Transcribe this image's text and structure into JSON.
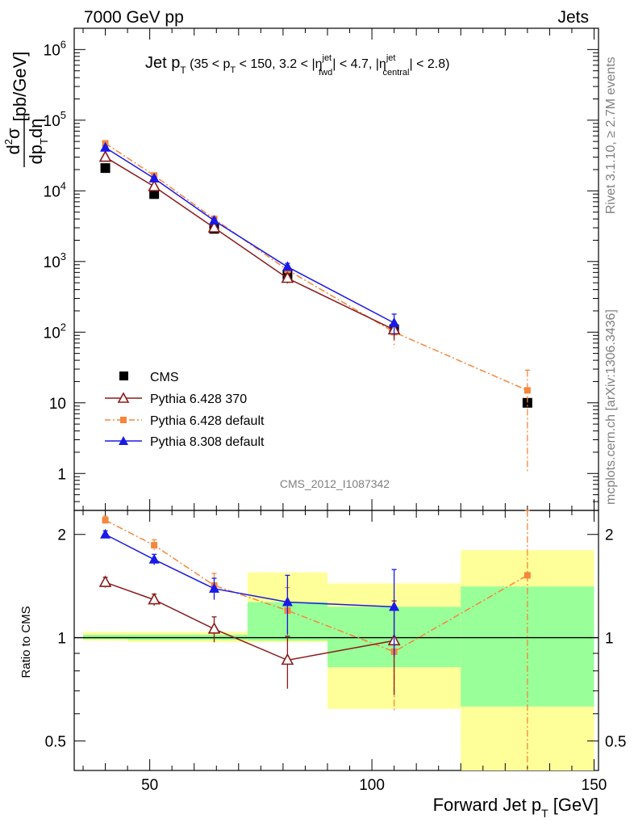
{
  "header": {
    "left": "7000 GeV pp",
    "right": "Jets"
  },
  "side_labels": {
    "rivet": "Rivet 3.1.10, ≥ 2.7M events",
    "mcplots": "mcplots.cern.ch [arXiv:1306.3436]"
  },
  "analysis_id": "CMS_2012_I1087342",
  "main_title": "Jet p_T (35 < p_T < 150, 3.2 < η^jet_fwd < 4.7, η^jet_central < 2.8)",
  "title_parts": {
    "jet": "Jet p",
    "T": "T",
    "open": " (35 < p",
    "mid": " < 150, 3.2 < |η",
    "jet_sup": "jet",
    "fwd": "fwd",
    "mid2": "| < 4.7, |η",
    "central": "central",
    "close": "| < 2.8)"
  },
  "ylabel_parts": {
    "num": "d²σ",
    "den": "dp_T dη",
    "unit": "[pb/GeV]"
  },
  "xlabel_parts": {
    "main": "Forward Jet p",
    "sub": "T",
    "unit": " [GeV]"
  },
  "ratio_ylabel": "Ratio to CMS",
  "colors": {
    "cms": "#000000",
    "py6_370": "#8b1a1a",
    "py6_default": "#f7863a",
    "py8_default": "#1a1ae6",
    "band_yellow": "#ffff99",
    "band_green": "#99ff99"
  },
  "chart_data": [
    {
      "type": "scatter",
      "name": "main",
      "x_scale": "linear",
      "y_scale": "log",
      "xlim": [
        33,
        151
      ],
      "ylim": [
        0.3,
        2000000
      ],
      "y_ticks": [
        "1",
        "10",
        "10^2",
        "10^3",
        "10^4",
        "10^5",
        "10^6"
      ],
      "legend_position": "bottom-left",
      "series": [
        {
          "name": "CMS",
          "style": "black-square",
          "x": [
            40,
            51,
            64.5,
            81,
            105,
            135
          ],
          "y": [
            21000,
            9000,
            2900,
            650,
            110,
            10
          ]
        },
        {
          "name": "Pythia 6.428 370",
          "style": "open-triangle-line",
          "x": [
            40,
            51,
            64.5,
            81,
            105
          ],
          "y": [
            30000,
            11500,
            3000,
            580,
            108
          ],
          "err": [
            1500,
            600,
            300,
            90,
            30
          ]
        },
        {
          "name": "Pythia 6.428 default",
          "style": "square-dashdot",
          "x": [
            40,
            51,
            64.5,
            81,
            105,
            135
          ],
          "y": [
            47000,
            16500,
            4000,
            760,
            100,
            15
          ],
          "err": [
            2000,
            1000,
            400,
            100,
            40,
            14
          ]
        },
        {
          "name": "Pythia 8.308 default",
          "style": "triangle-line",
          "x": [
            40,
            51,
            64.5,
            81,
            105
          ],
          "y": [
            41000,
            15000,
            3800,
            840,
            135
          ],
          "err": [
            2000,
            800,
            300,
            100,
            45
          ]
        }
      ]
    },
    {
      "type": "scatter",
      "name": "ratio",
      "x_scale": "linear",
      "y_scale": "log",
      "xlim": [
        33,
        151
      ],
      "ylim": [
        0.41,
        2.35
      ],
      "x_ticks": [
        50,
        100,
        150
      ],
      "y_ticks": [
        "0.5",
        "1",
        "2"
      ],
      "bands": [
        {
          "x0": 35,
          "x1": 45,
          "yellow": [
            0.98,
            1.04
          ],
          "green": [
            0.99,
            1.02
          ]
        },
        {
          "x0": 45,
          "x1": 72,
          "yellow": [
            0.97,
            1.04
          ],
          "green": [
            0.985,
            1.02
          ]
        },
        {
          "x0": 72,
          "x1": 90,
          "yellow": [
            0.97,
            1.55
          ],
          "green": [
            0.98,
            1.27
          ]
        },
        {
          "x0": 90,
          "x1": 120,
          "yellow": [
            0.62,
            1.44
          ],
          "green": [
            0.82,
            1.23
          ]
        },
        {
          "x0": 120,
          "x1": 150,
          "yellow": [
            0.3,
            1.8
          ],
          "green": [
            0.63,
            1.41
          ]
        }
      ],
      "series": [
        {
          "name": "Pythia 6.428 370",
          "x": [
            40,
            51,
            64.5,
            81,
            105
          ],
          "y": [
            1.45,
            1.29,
            1.06,
            0.86,
            0.98
          ],
          "err": [
            0.05,
            0.05,
            0.09,
            0.15,
            0.3
          ]
        },
        {
          "name": "Pythia 6.428 default",
          "x": [
            40,
            51,
            64.5,
            81,
            105,
            135
          ],
          "y": [
            2.2,
            1.86,
            1.42,
            1.2,
            0.91,
            1.52
          ],
          "err": [
            0.06,
            0.07,
            0.12,
            0.2,
            0.3,
            1.4
          ]
        },
        {
          "name": "Pythia 8.308 default",
          "x": [
            40,
            51,
            64.5,
            81,
            105
          ],
          "y": [
            2.0,
            1.69,
            1.39,
            1.27,
            1.23
          ],
          "err": [
            0.05,
            0.06,
            0.1,
            0.25,
            0.35
          ]
        }
      ]
    }
  ]
}
